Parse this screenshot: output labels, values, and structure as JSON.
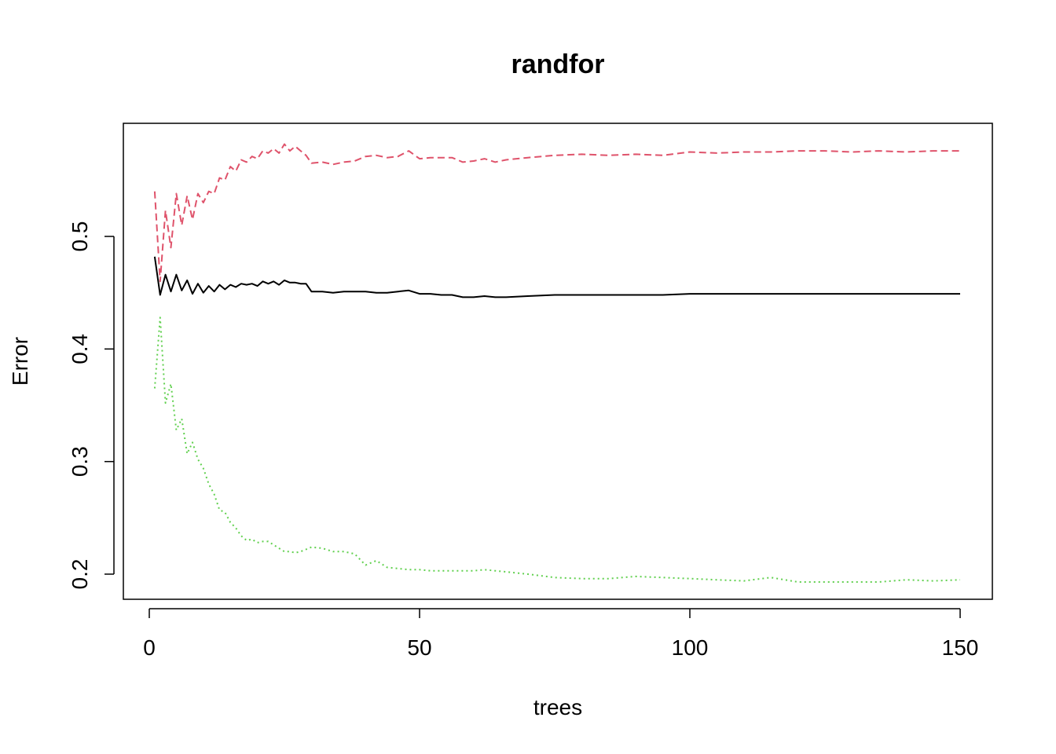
{
  "chart_data": {
    "type": "line",
    "title": "randfor",
    "xlabel": "trees",
    "ylabel": "Error",
    "xlim": [
      0,
      150
    ],
    "ylim": [
      0.18,
      0.595
    ],
    "x_ticks": [
      0,
      50,
      100,
      150
    ],
    "x_tick_labels": [
      "0",
      "50",
      "100",
      "150"
    ],
    "y_ticks": [
      0.2,
      0.3,
      0.4,
      0.5
    ],
    "y_tick_labels": [
      "0.2",
      "0.3",
      "0.4",
      "0.5"
    ],
    "grid": false,
    "legend": "none",
    "series": [
      {
        "color": "#000000",
        "dash": "solid",
        "x": [
          1,
          2,
          3,
          4,
          5,
          6,
          7,
          8,
          9,
          10,
          11,
          12,
          13,
          14,
          15,
          16,
          17,
          18,
          19,
          20,
          21,
          22,
          23,
          24,
          25,
          26,
          27,
          28,
          29,
          30,
          32,
          34,
          36,
          38,
          40,
          42,
          44,
          46,
          48,
          50,
          52,
          54,
          56,
          58,
          60,
          62,
          64,
          66,
          70,
          75,
          80,
          85,
          90,
          95,
          100,
          105,
          110,
          115,
          120,
          125,
          130,
          135,
          140,
          145,
          150
        ],
        "y": [
          0.482,
          0.448,
          0.466,
          0.451,
          0.466,
          0.452,
          0.461,
          0.449,
          0.458,
          0.45,
          0.456,
          0.451,
          0.457,
          0.453,
          0.457,
          0.455,
          0.458,
          0.457,
          0.458,
          0.456,
          0.46,
          0.458,
          0.46,
          0.457,
          0.461,
          0.459,
          0.459,
          0.458,
          0.458,
          0.451,
          0.451,
          0.45,
          0.451,
          0.451,
          0.451,
          0.45,
          0.45,
          0.451,
          0.452,
          0.449,
          0.449,
          0.448,
          0.448,
          0.446,
          0.446,
          0.447,
          0.446,
          0.446,
          0.447,
          0.448,
          0.448,
          0.448,
          0.448,
          0.448,
          0.449,
          0.449,
          0.449,
          0.449,
          0.449,
          0.449,
          0.449,
          0.449,
          0.449,
          0.449,
          0.449
        ]
      },
      {
        "color": "#DF536B",
        "dash": "dashed",
        "x": [
          1,
          2,
          3,
          4,
          5,
          6,
          7,
          8,
          9,
          10,
          11,
          12,
          13,
          14,
          15,
          16,
          17,
          18,
          19,
          20,
          21,
          22,
          23,
          24,
          25,
          26,
          27,
          28,
          29,
          30,
          32,
          34,
          36,
          38,
          40,
          42,
          44,
          46,
          48,
          50,
          52,
          54,
          56,
          58,
          60,
          62,
          64,
          66,
          70,
          75,
          80,
          85,
          90,
          95,
          100,
          105,
          110,
          115,
          120,
          125,
          130,
          135,
          140,
          145,
          150
        ],
        "y": [
          0.54,
          0.46,
          0.523,
          0.49,
          0.538,
          0.51,
          0.536,
          0.515,
          0.538,
          0.53,
          0.54,
          0.538,
          0.552,
          0.55,
          0.562,
          0.558,
          0.568,
          0.566,
          0.571,
          0.569,
          0.576,
          0.574,
          0.578,
          0.574,
          0.582,
          0.576,
          0.58,
          0.576,
          0.572,
          0.565,
          0.566,
          0.564,
          0.566,
          0.567,
          0.571,
          0.572,
          0.57,
          0.571,
          0.576,
          0.569,
          0.57,
          0.57,
          0.57,
          0.566,
          0.567,
          0.569,
          0.566,
          0.568,
          0.57,
          0.572,
          0.573,
          0.572,
          0.573,
          0.572,
          0.575,
          0.574,
          0.575,
          0.575,
          0.576,
          0.576,
          0.575,
          0.576,
          0.575,
          0.576,
          0.576
        ]
      },
      {
        "color": "#61D04F",
        "dash": "dotted",
        "x": [
          1,
          2,
          3,
          4,
          5,
          6,
          7,
          8,
          9,
          10,
          11,
          12,
          13,
          14,
          15,
          16,
          17,
          18,
          19,
          20,
          21,
          22,
          23,
          24,
          25,
          26,
          27,
          28,
          29,
          30,
          32,
          34,
          36,
          38,
          40,
          42,
          44,
          46,
          48,
          50,
          52,
          54,
          56,
          58,
          60,
          62,
          64,
          66,
          70,
          75,
          80,
          85,
          90,
          95,
          100,
          105,
          110,
          115,
          120,
          125,
          130,
          135,
          140,
          145,
          150
        ],
        "y": [
          0.365,
          0.428,
          0.352,
          0.369,
          0.328,
          0.338,
          0.307,
          0.317,
          0.302,
          0.294,
          0.28,
          0.271,
          0.257,
          0.255,
          0.246,
          0.241,
          0.234,
          0.23,
          0.231,
          0.228,
          0.229,
          0.229,
          0.226,
          0.223,
          0.22,
          0.22,
          0.219,
          0.22,
          0.222,
          0.224,
          0.223,
          0.22,
          0.22,
          0.218,
          0.208,
          0.212,
          0.206,
          0.205,
          0.204,
          0.204,
          0.203,
          0.203,
          0.203,
          0.203,
          0.203,
          0.204,
          0.203,
          0.202,
          0.2,
          0.197,
          0.196,
          0.196,
          0.198,
          0.197,
          0.196,
          0.195,
          0.194,
          0.197,
          0.193,
          0.193,
          0.193,
          0.193,
          0.195,
          0.194,
          0.195
        ]
      }
    ]
  }
}
